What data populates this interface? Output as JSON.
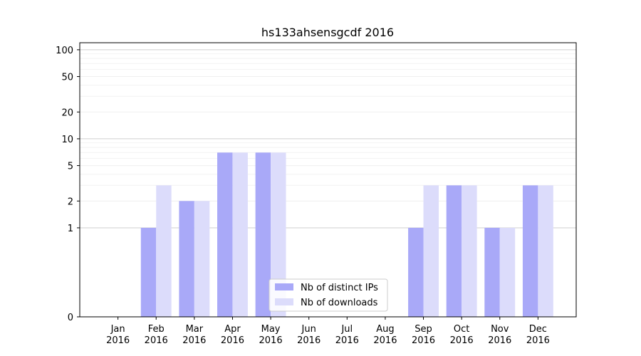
{
  "chart_data": {
    "type": "bar",
    "title": "hs133ahsensgcdf 2016",
    "xlabel": "",
    "ylabel": "",
    "yscale": "symlog",
    "ylim": [
      0,
      120
    ],
    "yticks": [
      0,
      1,
      2,
      5,
      10,
      20,
      50,
      100
    ],
    "grid": "y",
    "legend_position": "bottom-center",
    "categories": [
      "Jan\n2016",
      "Feb\n2016",
      "Mar\n2016",
      "Apr\n2016",
      "May\n2016",
      "Jun\n2016",
      "Jul\n2016",
      "Aug\n2016",
      "Sep\n2016",
      "Oct\n2016",
      "Nov\n2016",
      "Dec\n2016"
    ],
    "series": [
      {
        "name": "Nb of distinct IPs",
        "color": "#a9a9f8",
        "values": [
          0,
          1,
          2,
          7,
          7,
          0,
          0,
          0,
          1,
          3,
          1,
          3
        ]
      },
      {
        "name": "Nb of downloads",
        "color": "#dcdcfb",
        "values": [
          0,
          3,
          2,
          7,
          7,
          0,
          0,
          0,
          3,
          3,
          1,
          3
        ]
      }
    ]
  }
}
